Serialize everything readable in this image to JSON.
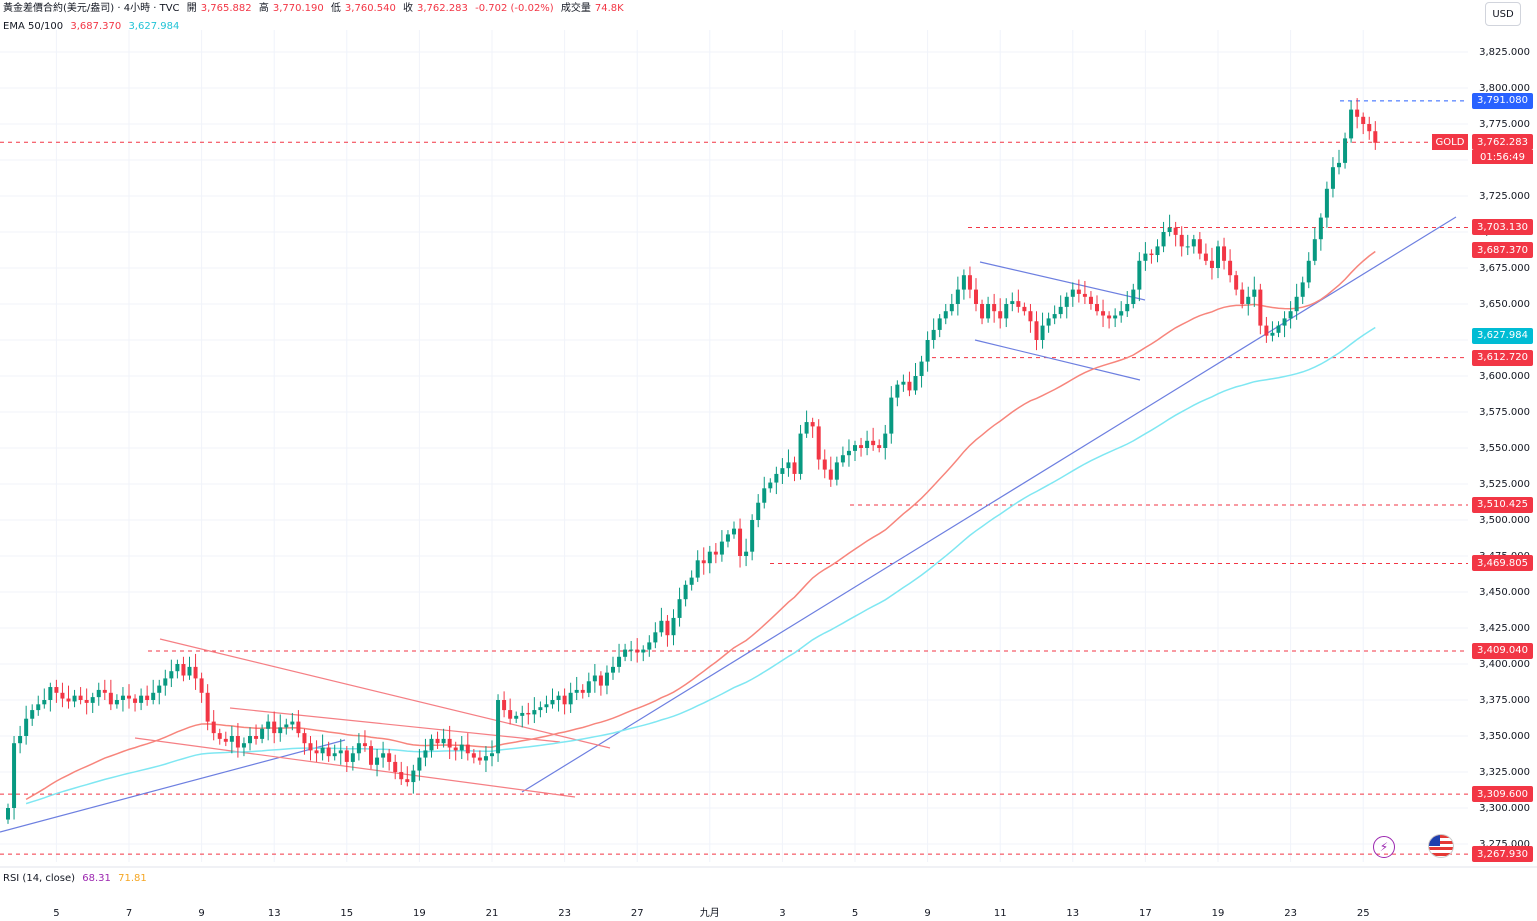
{
  "header": {
    "symbol": "黃金差價合約(美元/盎司) · 4小時 · TVC",
    "open_label": "開",
    "open": "3,765.882",
    "high_label": "高",
    "high": "3,770.190",
    "low_label": "低",
    "low": "3,760.540",
    "close_label": "收",
    "close": "3,762.283",
    "change": "-0.702 (-0.02%)",
    "volume_label": "成交量",
    "volume": "74.8K",
    "ema_label": "EMA 50/100",
    "ema50": "3,687.370",
    "ema100": "3,627.984"
  },
  "currency": "USD",
  "gold_tag": "GOLD",
  "countdown": "01:56:49",
  "rsi": {
    "label": "RSI (14, close)",
    "value1": "68.31",
    "value2": "71.81"
  },
  "colors": {
    "up": "#089981",
    "down": "#f23645",
    "ema50": "#f7857c",
    "ema100": "#7fe7f2",
    "trend": "#6d7fe0",
    "channel": "#f57f84"
  },
  "price_tags": [
    {
      "value": "3,791.080",
      "price": 3791.08,
      "color": "#2962ff"
    },
    {
      "value": "3,762.283",
      "price": 3762.283,
      "color": "#f23645"
    },
    {
      "value": "3,703.130",
      "price": 3703.13,
      "color": "#f23645"
    },
    {
      "value": "3,687.370",
      "price": 3687.37,
      "color": "#f23645"
    },
    {
      "value": "3,627.984",
      "price": 3627.984,
      "color": "#00bcd4"
    },
    {
      "value": "3,612.720",
      "price": 3612.72,
      "color": "#f23645"
    },
    {
      "value": "3,510.425",
      "price": 3510.425,
      "color": "#f23645"
    },
    {
      "value": "3,469.805",
      "price": 3469.805,
      "color": "#f23645"
    },
    {
      "value": "3,409.040",
      "price": 3409.04,
      "color": "#f23645"
    },
    {
      "value": "3,309.600",
      "price": 3309.6,
      "color": "#f23645"
    },
    {
      "value": "3,267.930",
      "price": 3267.93,
      "color": "#f23645"
    }
  ],
  "chart_data": {
    "type": "candlestick",
    "y_ticks": [
      "3,825.000",
      "3,800.000",
      "3,775.000",
      "3,750.000",
      "3,725.000",
      "3,700.000",
      "3,675.000",
      "3,650.000",
      "3,625.000",
      "3,600.000",
      "3,575.000",
      "3,550.000",
      "3,525.000",
      "3,500.000",
      "3,475.000",
      "3,450.000",
      "3,425.000",
      "3,400.000",
      "3,375.000",
      "3,350.000",
      "3,325.000",
      "3,300.000",
      "3,275.000"
    ],
    "y_tick_values": [
      3825,
      3800,
      3775,
      3750,
      3725,
      3700,
      3675,
      3650,
      3625,
      3600,
      3575,
      3550,
      3525,
      3500,
      3475,
      3450,
      3425,
      3400,
      3375,
      3350,
      3325,
      3300,
      3275
    ],
    "x_ticks": [
      {
        "label": "5",
        "bar": 8
      },
      {
        "label": "7",
        "bar": 20
      },
      {
        "label": "9",
        "bar": 32
      },
      {
        "label": "13",
        "bar": 44
      },
      {
        "label": "15",
        "bar": 56
      },
      {
        "label": "19",
        "bar": 68
      },
      {
        "label": "21",
        "bar": 80
      },
      {
        "label": "23",
        "bar": 92
      },
      {
        "label": "27",
        "bar": 104
      },
      {
        "label": "九月",
        "bar": 116
      },
      {
        "label": "3",
        "bar": 128
      },
      {
        "label": "5",
        "bar": 140
      },
      {
        "label": "9",
        "bar": 152
      },
      {
        "label": "11",
        "bar": 164
      },
      {
        "label": "13",
        "bar": 176
      },
      {
        "label": "17",
        "bar": 188
      },
      {
        "label": "19",
        "bar": 200
      },
      {
        "label": "23",
        "bar": 212
      },
      {
        "label": "25",
        "bar": 224
      }
    ],
    "ylim": [
      3260,
      3835
    ],
    "closes": [
      3300,
      3345,
      3350,
      3362,
      3368,
      3372,
      3375,
      3384,
      3380,
      3376,
      3374,
      3378,
      3375,
      3373,
      3377,
      3382,
      3380,
      3372,
      3375,
      3378,
      3376,
      3373,
      3378,
      3375,
      3380,
      3385,
      3390,
      3395,
      3400,
      3392,
      3398,
      3390,
      3380,
      3360,
      3352,
      3348,
      3346,
      3350,
      3342,
      3345,
      3350,
      3348,
      3355,
      3360,
      3352,
      3356,
      3358,
      3360,
      3352,
      3345,
      3340,
      3338,
      3342,
      3336,
      3338,
      3340,
      3332,
      3338,
      3345,
      3343,
      3330,
      3335,
      3338,
      3332,
      3325,
      3320,
      3318,
      3326,
      3335,
      3340,
      3348,
      3345,
      3348,
      3342,
      3340,
      3344,
      3338,
      3335,
      3333,
      3336,
      3338,
      3375,
      3368,
      3362,
      3364,
      3366,
      3365,
      3368,
      3370,
      3372,
      3375,
      3378,
      3372,
      3380,
      3382,
      3380,
      3388,
      3392,
      3385,
      3394,
      3398,
      3405,
      3410,
      3410,
      3408,
      3410,
      3415,
      3422,
      3430,
      3420,
      3432,
      3445,
      3455,
      3460,
      3472,
      3470,
      3478,
      3476,
      3485,
      3490,
      3494,
      3475,
      3478,
      3500,
      3512,
      3522,
      3526,
      3532,
      3536,
      3540,
      3532,
      3560,
      3568,
      3565,
      3542,
      3535,
      3528,
      3540,
      3545,
      3548,
      3552,
      3550,
      3555,
      3552,
      3550,
      3560,
      3585,
      3594,
      3596,
      3590,
      3600,
      3610,
      3625,
      3632,
      3640,
      3645,
      3650,
      3660,
      3670,
      3660,
      3650,
      3640,
      3650,
      3645,
      3640,
      3650,
      3652,
      3648,
      3645,
      3638,
      3625,
      3635,
      3640,
      3643,
      3648,
      3655,
      3660,
      3657,
      3655,
      3650,
      3645,
      3642,
      3640,
      3642,
      3645,
      3650,
      3660,
      3680,
      3685,
      3684,
      3690,
      3700,
      3703,
      3698,
      3690,
      3690,
      3695,
      3685,
      3680,
      3675,
      3690,
      3680,
      3670,
      3660,
      3650,
      3655,
      3660,
      3635,
      3628,
      3630,
      3635,
      3640,
      3645,
      3655,
      3665,
      3680,
      3695,
      3710,
      3730,
      3745,
      3748,
      3765,
      3785,
      3780,
      3775,
      3770,
      3762
    ]
  }
}
